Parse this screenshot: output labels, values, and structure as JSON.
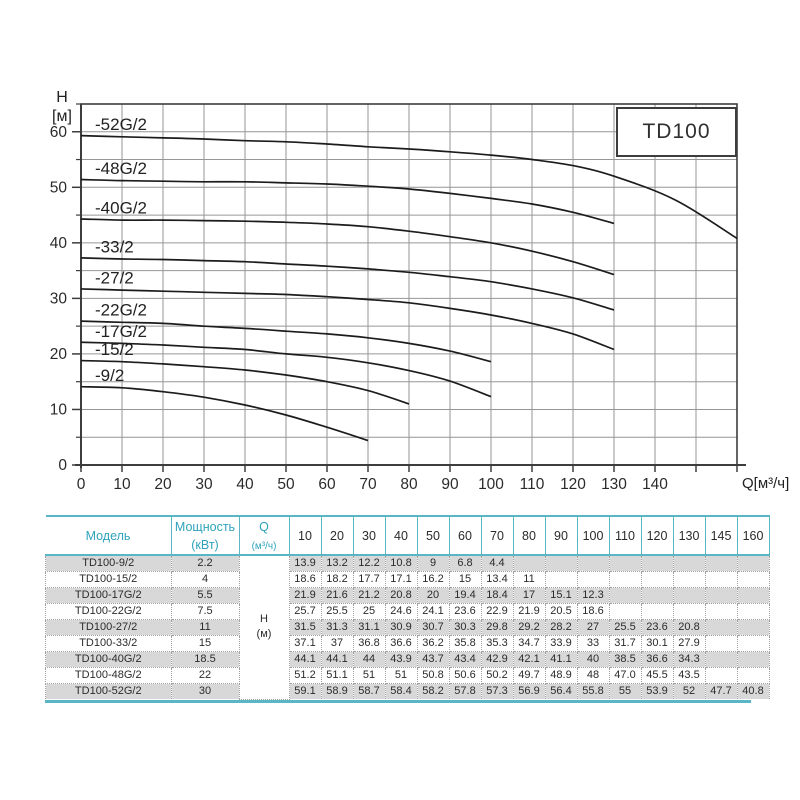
{
  "chart": {
    "title": "TD100",
    "y_axis_title": "H\n[м]",
    "x_axis_title": "Q[м³/ч]",
    "x_tick_labels": [
      0,
      10,
      20,
      30,
      40,
      50,
      60,
      70,
      80,
      90,
      100,
      110,
      120,
      130,
      140
    ],
    "y_tick_labels": [
      0,
      10,
      20,
      30,
      40,
      50,
      60
    ]
  },
  "chart_data": {
    "type": "line",
    "title": "TD100",
    "xlabel": "Q[м³/ч]",
    "ylabel": "H[м]",
    "x": [
      10,
      20,
      30,
      40,
      50,
      60,
      70,
      80,
      90,
      100,
      110,
      120,
      130,
      145,
      160
    ],
    "xlim": [
      0,
      160
    ],
    "ylim": [
      0,
      65
    ],
    "grid": true,
    "x_grid_step": 10,
    "y_grid_step": 5,
    "series": [
      {
        "name": "TD100-52G/2",
        "label": "-52G/2",
        "values": [
          59.1,
          58.9,
          58.7,
          58.4,
          58.2,
          57.8,
          57.3,
          56.9,
          56.4,
          55.8,
          55,
          53.9,
          52,
          47.7,
          40.8
        ]
      },
      {
        "name": "TD100-48G/2",
        "label": "-48G/2",
        "values": [
          51.2,
          51.1,
          51,
          51,
          50.8,
          50.6,
          50.2,
          49.7,
          48.9,
          48,
          47.0,
          45.5,
          43.5,
          null,
          null
        ]
      },
      {
        "name": "TD100-40G/2",
        "label": "-40G/2",
        "values": [
          44.1,
          44.1,
          44,
          43.9,
          43.7,
          43.4,
          42.9,
          42.1,
          41.1,
          40,
          38.5,
          36.6,
          34.3,
          null,
          null
        ]
      },
      {
        "name": "TD100-33/2",
        "label": "-33/2",
        "values": [
          37.1,
          37,
          36.8,
          36.6,
          36.2,
          35.8,
          35.3,
          34.7,
          33.9,
          33,
          31.7,
          30.1,
          27.9,
          null,
          null
        ]
      },
      {
        "name": "TD100-27/2",
        "label": "-27/2",
        "values": [
          31.5,
          31.3,
          31.1,
          30.9,
          30.7,
          30.3,
          29.8,
          29.2,
          28.2,
          27,
          25.5,
          23.6,
          20.8,
          null,
          null
        ]
      },
      {
        "name": "TD100-22G/2",
        "label": "-22G/2",
        "values": [
          25.7,
          25.5,
          25,
          24.6,
          24.1,
          23.6,
          22.9,
          21.9,
          20.5,
          18.6,
          null,
          null,
          null,
          null,
          null
        ]
      },
      {
        "name": "TD100-17G/2",
        "label": "-17G/2",
        "values": [
          21.9,
          21.6,
          21.2,
          20.8,
          20,
          19.4,
          18.4,
          17,
          15.1,
          12.3,
          null,
          null,
          null,
          null,
          null
        ]
      },
      {
        "name": "TD100-15/2",
        "label": "-15/2",
        "values": [
          18.6,
          18.2,
          17.7,
          17.1,
          16.2,
          15,
          13.4,
          11,
          null,
          null,
          null,
          null,
          null,
          null,
          null
        ]
      },
      {
        "name": "TD100-9/2",
        "label": "-9/2",
        "values": [
          13.9,
          13.2,
          12.2,
          10.8,
          9,
          6.8,
          4.4,
          null,
          null,
          null,
          null,
          null,
          null,
          null,
          null
        ]
      }
    ]
  },
  "table": {
    "col_model": "Модель",
    "col_power": "Мощность\n(кВт)",
    "col_q_line1": "Q",
    "col_q_line2": "(м³/ч)",
    "flow_columns": [
      "10",
      "20",
      "30",
      "40",
      "50",
      "60",
      "70",
      "80",
      "90",
      "100",
      "110",
      "120",
      "130",
      "145",
      "160"
    ],
    "h_unit_label": "Н\n(м)",
    "rows": [
      {
        "model": "TD100-9/2",
        "power": "2.2",
        "values": [
          "13.9",
          "13.2",
          "12.2",
          "10.8",
          "9",
          "6.8",
          "4.4",
          "",
          "",
          "",
          "",
          "",
          "",
          "",
          ""
        ]
      },
      {
        "model": "TD100-15/2",
        "power": "4",
        "values": [
          "18.6",
          "18.2",
          "17.7",
          "17.1",
          "16.2",
          "15",
          "13.4",
          "11",
          "",
          "",
          "",
          "",
          "",
          "",
          ""
        ]
      },
      {
        "model": "TD100-17G/2",
        "power": "5.5",
        "values": [
          "21.9",
          "21.6",
          "21.2",
          "20.8",
          "20",
          "19.4",
          "18.4",
          "17",
          "15.1",
          "12.3",
          "",
          "",
          "",
          "",
          ""
        ]
      },
      {
        "model": "TD100-22G/2",
        "power": "7.5",
        "values": [
          "25.7",
          "25.5",
          "25",
          "24.6",
          "24.1",
          "23.6",
          "22.9",
          "21.9",
          "20.5",
          "18.6",
          "",
          "",
          "",
          "",
          ""
        ]
      },
      {
        "model": "TD100-27/2",
        "power": "11",
        "values": [
          "31.5",
          "31.3",
          "31.1",
          "30.9",
          "30.7",
          "30.3",
          "29.8",
          "29.2",
          "28.2",
          "27",
          "25.5",
          "23.6",
          "20.8",
          "",
          ""
        ]
      },
      {
        "model": "TD100-33/2",
        "power": "15",
        "values": [
          "37.1",
          "37",
          "36.8",
          "36.6",
          "36.2",
          "35.8",
          "35.3",
          "34.7",
          "33.9",
          "33",
          "31.7",
          "30.1",
          "27.9",
          "",
          ""
        ]
      },
      {
        "model": "TD100-40G/2",
        "power": "18.5",
        "values": [
          "44.1",
          "44.1",
          "44",
          "43.9",
          "43.7",
          "43.4",
          "42.9",
          "42.1",
          "41.1",
          "40",
          "38.5",
          "36.6",
          "34.3",
          "",
          ""
        ]
      },
      {
        "model": "TD100-48G/2",
        "power": "22",
        "values": [
          "51.2",
          "51.1",
          "51",
          "51",
          "50.8",
          "50.6",
          "50.2",
          "49.7",
          "48.9",
          "48",
          "47.0",
          "45.5",
          "43.5",
          "",
          ""
        ]
      },
      {
        "model": "TD100-52G/2",
        "power": "30",
        "values": [
          "59.1",
          "58.9",
          "58.7",
          "58.4",
          "58.2",
          "57.8",
          "57.3",
          "56.9",
          "56.4",
          "55.8",
          "55",
          "53.9",
          "52",
          "47.7",
          "40.8"
        ]
      }
    ]
  },
  "colors": {
    "teal_line": "#5ab5c5",
    "teal_text": "#2fa3bb",
    "row_stripe": "#d8d8d8",
    "grid": "#969696",
    "axis": "#3d3d3d",
    "curve": "#1c1c1c",
    "text": "#2b2b2b"
  }
}
